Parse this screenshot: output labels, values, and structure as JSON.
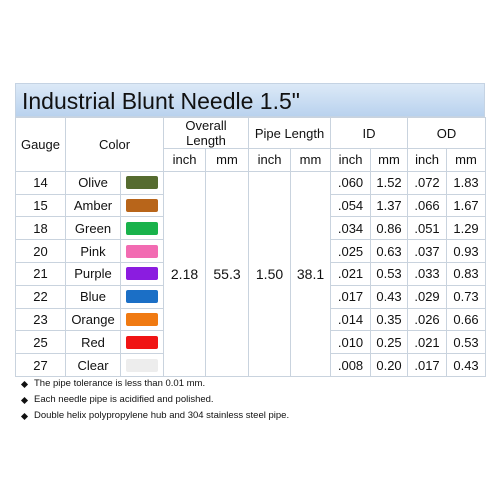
{
  "title": "Industrial Blunt Needle 1.5\"",
  "header": {
    "gauge": "Gauge",
    "color": "Color",
    "overall_length": "Overall Length",
    "pipe_length": "Pipe Length",
    "id": "ID",
    "od": "OD"
  },
  "subheader": [
    "inch",
    "mm",
    "inch",
    "mm",
    "inch",
    "mm",
    "inch",
    "mm"
  ],
  "overall_length": {
    "inch": "2.18",
    "mm": "55.3"
  },
  "pipe_length": {
    "inch": "1.50",
    "mm": "38.1"
  },
  "rows": [
    {
      "gauge": "14",
      "color": "Olive",
      "swatch": "#556b2f",
      "id_inch": ".060",
      "id_mm": "1.52",
      "od_inch": ".072",
      "od_mm": "1.83"
    },
    {
      "gauge": "15",
      "color": "Amber",
      "swatch": "#b8651a",
      "id_inch": ".054",
      "id_mm": "1.37",
      "od_inch": ".066",
      "od_mm": "1.67"
    },
    {
      "gauge": "18",
      "color": "Green",
      "swatch": "#19b24b",
      "id_inch": ".034",
      "id_mm": "0.86",
      "od_inch": ".051",
      "od_mm": "1.29"
    },
    {
      "gauge": "20",
      "color": "Pink",
      "swatch": "#f26bb2",
      "id_inch": ".025",
      "id_mm": "0.63",
      "od_inch": ".037",
      "od_mm": "0.93"
    },
    {
      "gauge": "21",
      "color": "Purple",
      "swatch": "#8b1ce0",
      "id_inch": ".021",
      "id_mm": "0.53",
      "od_inch": ".033",
      "od_mm": "0.83"
    },
    {
      "gauge": "22",
      "color": "Blue",
      "swatch": "#1b6fc6",
      "id_inch": ".017",
      "id_mm": "0.43",
      "od_inch": ".029",
      "od_mm": "0.73"
    },
    {
      "gauge": "23",
      "color": "Orange",
      "swatch": "#f07a12",
      "id_inch": ".014",
      "id_mm": "0.35",
      "od_inch": ".026",
      "od_mm": "0.66"
    },
    {
      "gauge": "25",
      "color": "Red",
      "swatch": "#f01414",
      "id_inch": ".010",
      "id_mm": "0.25",
      "od_inch": ".021",
      "od_mm": "0.53"
    },
    {
      "gauge": "27",
      "color": "Clear",
      "swatch": "#ededed",
      "id_inch": ".008",
      "id_mm": "0.20",
      "od_inch": ".017",
      "od_mm": "0.43"
    }
  ],
  "notes": [
    "The pipe tolerance is less than 0.01 mm.",
    "Each needle pipe is acidified and polished.",
    "Double helix polypropylene hub and 304 stainless steel pipe."
  ]
}
